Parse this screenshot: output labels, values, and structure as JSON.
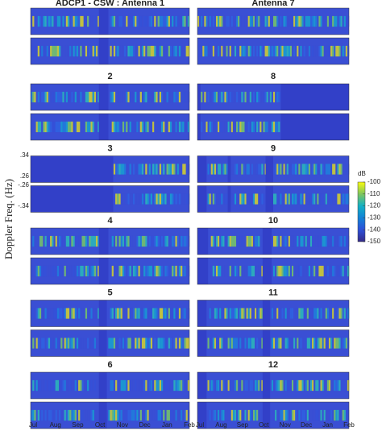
{
  "panels": [
    "ADCP1 - CSW : Antenna 1",
    "2",
    "3",
    "4",
    "5",
    "6",
    "Antenna 7",
    "8",
    "9",
    "10",
    "11",
    "12"
  ],
  "y_axis": {
    "label": "Doppler Freq. (Hz)",
    "ticks": [
      ".34",
      ".26",
      "-.26",
      "-.34"
    ]
  },
  "x_axis": {
    "ticks": [
      "Jul",
      "Aug",
      "Sep",
      "Oct",
      "Nov",
      "Dec",
      "Jan",
      "Feb"
    ]
  },
  "colorbar": {
    "label": "dB",
    "lim": [
      -150,
      -100
    ],
    "ticks": [
      -100,
      -110,
      -120,
      -130,
      -140,
      -150
    ]
  }
}
